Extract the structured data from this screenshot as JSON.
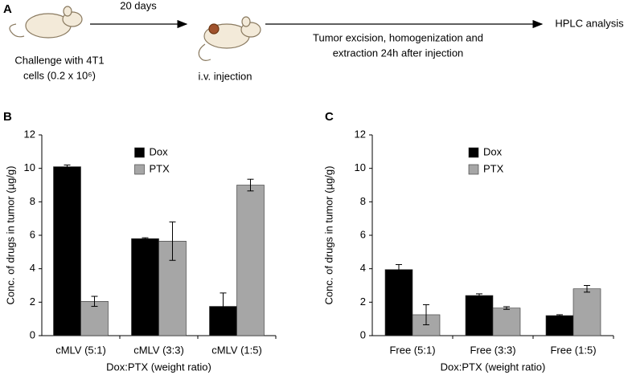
{
  "schematic": {
    "panel_label": "A",
    "step1_label": "20 days",
    "challenge_line1": "Challenge with 4T1",
    "challenge_line2": "cells (0.2 x 10⁶)",
    "injection": "i.v. injection",
    "excision_line1": "Tumor excision, homogenization and",
    "excision_line2": "extraction 24h after injection",
    "analysis": "HPLC analysis"
  },
  "chart_data": [
    {
      "type": "bar",
      "panel_label": "B",
      "y_label": "Conc. of drugs in tumor (µg/g)",
      "x_label": "Dox:PTX (weight ratio)",
      "categories": [
        "cMLV (5:1)",
        "cMLV (3:3)",
        "cMLV (1:5)"
      ],
      "series": [
        {
          "name": "Dox",
          "color": "#000000",
          "values": [
            10.1,
            5.8,
            1.75
          ],
          "errors": [
            0.1,
            0.05,
            0.8
          ]
        },
        {
          "name": "PTX",
          "color": "#a6a6a6",
          "values": [
            2.05,
            5.65,
            9.0
          ],
          "errors": [
            0.3,
            1.15,
            0.35
          ]
        }
      ],
      "ylim": [
        0,
        12
      ],
      "yticks": [
        0,
        2,
        4,
        6,
        8,
        10,
        12
      ],
      "grid": false,
      "legend": "top-center"
    },
    {
      "type": "bar",
      "panel_label": "C",
      "y_label": "Conc. of drugs in tumor (µg/g)",
      "x_label": "Dox:PTX (weight ratio)",
      "categories": [
        "Free (5:1)",
        "Free (3:3)",
        "Free (1:5)"
      ],
      "series": [
        {
          "name": "Dox",
          "color": "#000000",
          "values": [
            3.95,
            2.4,
            1.2
          ],
          "errors": [
            0.3,
            0.1,
            0.05
          ]
        },
        {
          "name": "PTX",
          "color": "#a6a6a6",
          "values": [
            1.25,
            1.65,
            2.8
          ],
          "errors": [
            0.6,
            0.08,
            0.2
          ]
        }
      ],
      "ylim": [
        0,
        12
      ],
      "yticks": [
        0,
        2,
        4,
        6,
        8,
        10,
        12
      ],
      "grid": false,
      "legend": "top-center"
    }
  ]
}
